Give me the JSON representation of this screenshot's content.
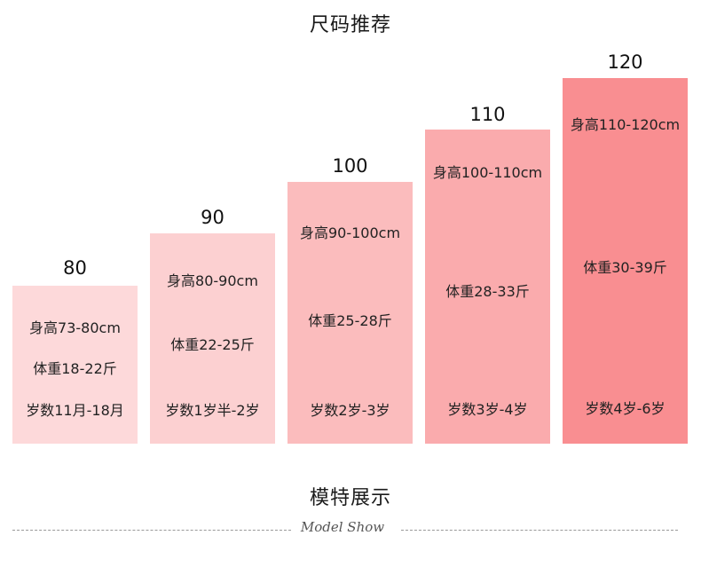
{
  "title": "尺码推荐",
  "sizes": [
    {
      "size": "80",
      "height": "身高73-80cm",
      "weight": "体重18-22斤",
      "age": "岁数11月-18月",
      "color": "#fdd9da"
    },
    {
      "size": "90",
      "height": "身高80-90cm",
      "weight": "体重22-25斤",
      "age": "岁数1岁半-2岁",
      "color": "#fcd0d1"
    },
    {
      "size": "100",
      "height": "身高90-100cm",
      "weight": "体重25-28斤",
      "age": "岁数2岁-3岁",
      "color": "#fbbcbd"
    },
    {
      "size": "110",
      "height": "身高100-110cm",
      "weight": "体重28-33斤",
      "age": "岁数3岁-4岁",
      "color": "#faabad"
    },
    {
      "size": "120",
      "height": "身高110-120cm",
      "weight": "体重30-39斤",
      "age": "岁数4岁-6岁",
      "color": "#f98e91"
    }
  ],
  "section": {
    "title": "模特展示",
    "subtitle": "Model Show"
  }
}
